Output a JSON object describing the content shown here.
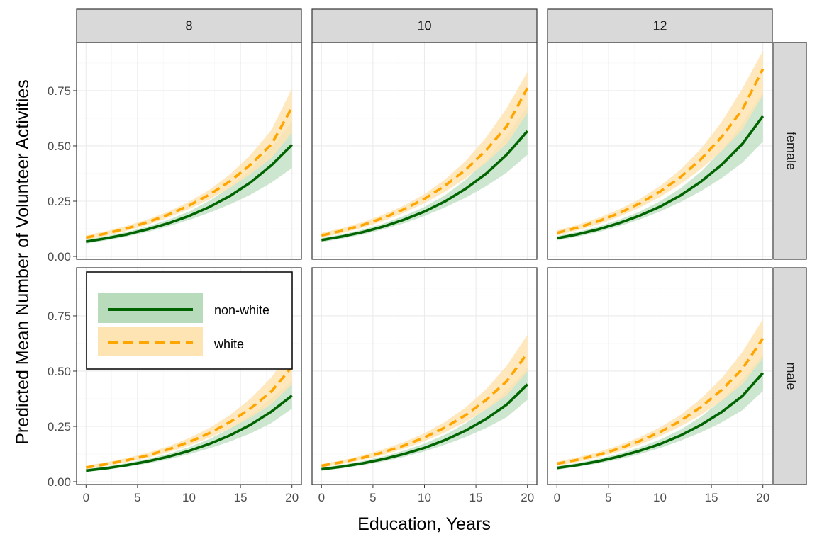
{
  "chart_data": {
    "type": "line",
    "xlabel": "Education, Years",
    "ylabel": "Predicted Mean Number of Volunteer Activities",
    "xlim": [
      0,
      20
    ],
    "ylim": [
      0,
      1
    ],
    "x_ticks": [
      "0",
      "5",
      "10",
      "15",
      "20"
    ],
    "y_ticks": [
      "0.00",
      "0.25",
      "0.50",
      "0.75"
    ],
    "col_facets": [
      "8",
      "10",
      "12"
    ],
    "row_facets": [
      "female",
      "male"
    ],
    "grid": true,
    "legend": {
      "position": "inside-top-left of bottom-left panel",
      "entries": [
        "non-white",
        "white"
      ]
    },
    "colors": {
      "non_white_line": "#006400",
      "non_white_ribbon": "#b8dbbb",
      "white_line": "#ffa500",
      "white_ribbon": "#ffe4b3"
    },
    "x": [
      0,
      2,
      4,
      6,
      8,
      10,
      12,
      14,
      16,
      18,
      20
    ],
    "panels": [
      {
        "col": "8",
        "row": "female",
        "series": [
          {
            "name": "non-white",
            "values": [
              0.067,
              0.082,
              0.1,
              0.123,
              0.15,
              0.183,
              0.224,
              0.274,
              0.336,
              0.412,
              0.505
            ],
            "lower": [
              0.058,
              0.073,
              0.09,
              0.111,
              0.136,
              0.165,
              0.198,
              0.236,
              0.28,
              0.334,
              0.4
            ],
            "upper": [
              0.076,
              0.092,
              0.111,
              0.136,
              0.166,
              0.203,
              0.252,
              0.314,
              0.393,
              0.493,
              0.61
            ]
          },
          {
            "name": "white",
            "values": [
              0.085,
              0.104,
              0.127,
              0.155,
              0.189,
              0.23,
              0.28,
              0.341,
              0.416,
              0.507,
              0.674
            ],
            "lower": [
              0.076,
              0.094,
              0.116,
              0.143,
              0.176,
              0.214,
              0.259,
              0.311,
              0.373,
              0.445,
              0.56
            ],
            "upper": [
              0.095,
              0.115,
              0.139,
              0.168,
              0.203,
              0.247,
              0.302,
              0.372,
              0.461,
              0.572,
              0.76
            ]
          }
        ]
      },
      {
        "col": "10",
        "row": "female",
        "series": [
          {
            "name": "non-white",
            "values": [
              0.074,
              0.09,
              0.11,
              0.135,
              0.166,
              0.203,
              0.249,
              0.306,
              0.375,
              0.461,
              0.567
            ],
            "lower": [
              0.065,
              0.08,
              0.099,
              0.122,
              0.15,
              0.183,
              0.222,
              0.266,
              0.318,
              0.38,
              0.46
            ],
            "upper": [
              0.083,
              0.1,
              0.121,
              0.148,
              0.183,
              0.224,
              0.277,
              0.347,
              0.435,
              0.547,
              0.68
            ]
          },
          {
            "name": "white",
            "values": [
              0.095,
              0.116,
              0.142,
              0.174,
              0.213,
              0.261,
              0.32,
              0.392,
              0.481,
              0.59,
              0.762
            ],
            "lower": [
              0.085,
              0.105,
              0.13,
              0.16,
              0.197,
              0.241,
              0.293,
              0.353,
              0.425,
              0.51,
              0.65
            ],
            "upper": [
              0.106,
              0.128,
              0.155,
              0.189,
              0.23,
              0.282,
              0.348,
              0.432,
              0.539,
              0.672,
              0.835
            ]
          }
        ]
      },
      {
        "col": "12",
        "row": "female",
        "series": [
          {
            "name": "non-white",
            "values": [
              0.082,
              0.1,
              0.122,
              0.15,
              0.184,
              0.225,
              0.276,
              0.339,
              0.415,
              0.509,
              0.635
            ],
            "lower": [
              0.072,
              0.089,
              0.11,
              0.136,
              0.167,
              0.203,
              0.246,
              0.296,
              0.354,
              0.424,
              0.52
            ],
            "upper": [
              0.092,
              0.111,
              0.135,
              0.165,
              0.202,
              0.249,
              0.308,
              0.384,
              0.481,
              0.602,
              0.745
            ]
          },
          {
            "name": "white",
            "values": [
              0.106,
              0.13,
              0.159,
              0.195,
              0.239,
              0.293,
              0.359,
              0.441,
              0.541,
              0.664,
              0.848
            ],
            "lower": [
              0.095,
              0.118,
              0.145,
              0.179,
              0.22,
              0.269,
              0.327,
              0.396,
              0.477,
              0.574,
              0.73
            ],
            "upper": [
              0.118,
              0.143,
              0.174,
              0.212,
              0.259,
              0.318,
              0.393,
              0.488,
              0.609,
              0.759,
              0.93
            ]
          }
        ]
      },
      {
        "col": "8",
        "row": "male",
        "series": [
          {
            "name": "non-white",
            "values": [
              0.05,
              0.061,
              0.075,
              0.092,
              0.113,
              0.139,
              0.171,
              0.21,
              0.258,
              0.317,
              0.389
            ],
            "lower": [
              0.043,
              0.054,
              0.067,
              0.082,
              0.101,
              0.124,
              0.151,
              0.182,
              0.219,
              0.265,
              0.33
            ],
            "upper": [
              0.057,
              0.069,
              0.084,
              0.103,
              0.126,
              0.156,
              0.193,
              0.241,
              0.302,
              0.378,
              0.455
            ]
          },
          {
            "name": "white",
            "values": [
              0.064,
              0.079,
              0.097,
              0.119,
              0.146,
              0.179,
              0.22,
              0.27,
              0.332,
              0.408,
              0.52
            ],
            "lower": [
              0.057,
              0.071,
              0.088,
              0.108,
              0.133,
              0.163,
              0.199,
              0.241,
              0.291,
              0.351,
              0.44
            ],
            "upper": [
              0.072,
              0.088,
              0.107,
              0.131,
              0.16,
              0.197,
              0.243,
              0.302,
              0.377,
              0.472,
              0.6
            ]
          }
        ]
      },
      {
        "col": "10",
        "row": "male",
        "series": [
          {
            "name": "non-white",
            "values": [
              0.056,
              0.068,
              0.083,
              0.102,
              0.125,
              0.153,
              0.188,
              0.231,
              0.284,
              0.349,
              0.44
            ],
            "lower": [
              0.049,
              0.06,
              0.074,
              0.091,
              0.112,
              0.137,
              0.167,
              0.202,
              0.243,
              0.292,
              0.37
            ],
            "upper": [
              0.063,
              0.076,
              0.093,
              0.114,
              0.14,
              0.172,
              0.212,
              0.264,
              0.33,
              0.414,
              0.515
            ]
          },
          {
            "name": "white",
            "values": [
              0.072,
              0.088,
              0.108,
              0.133,
              0.163,
              0.2,
              0.245,
              0.301,
              0.37,
              0.455,
              0.582
            ],
            "lower": [
              0.064,
              0.08,
              0.098,
              0.121,
              0.149,
              0.183,
              0.223,
              0.27,
              0.326,
              0.392,
              0.5
            ],
            "upper": [
              0.08,
              0.097,
              0.119,
              0.146,
              0.179,
              0.219,
              0.27,
              0.336,
              0.419,
              0.525,
              0.665
            ]
          }
        ]
      },
      {
        "col": "12",
        "row": "male",
        "series": [
          {
            "name": "non-white",
            "values": [
              0.062,
              0.075,
              0.092,
              0.113,
              0.139,
              0.17,
              0.209,
              0.257,
              0.315,
              0.387,
              0.492
            ],
            "lower": [
              0.054,
              0.067,
              0.082,
              0.101,
              0.124,
              0.152,
              0.185,
              0.223,
              0.268,
              0.323,
              0.41
            ],
            "upper": [
              0.07,
              0.084,
              0.103,
              0.126,
              0.155,
              0.19,
              0.235,
              0.294,
              0.369,
              0.464,
              0.575
            ]
          },
          {
            "name": "white",
            "values": [
              0.081,
              0.099,
              0.121,
              0.149,
              0.183,
              0.224,
              0.275,
              0.338,
              0.415,
              0.51,
              0.648
            ],
            "lower": [
              0.072,
              0.089,
              0.11,
              0.136,
              0.167,
              0.205,
              0.25,
              0.303,
              0.366,
              0.441,
              0.56
            ],
            "upper": [
              0.09,
              0.11,
              0.134,
              0.164,
              0.2,
              0.245,
              0.302,
              0.376,
              0.469,
              0.586,
              0.735
            ]
          }
        ]
      }
    ]
  }
}
